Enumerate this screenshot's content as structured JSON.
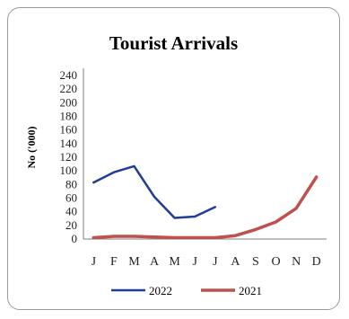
{
  "chart_data": {
    "type": "line",
    "title": "Tourist Arrivals",
    "xlabel": "",
    "ylabel": "No ('000)",
    "categories": [
      "J",
      "F",
      "M",
      "A",
      "M",
      "J",
      "J",
      "A",
      "S",
      "O",
      "N",
      "D"
    ],
    "yticks": [
      0,
      20,
      40,
      60,
      80,
      100,
      120,
      140,
      160,
      180,
      200,
      220,
      240
    ],
    "ylim": [
      0,
      240
    ],
    "grid": false,
    "legend_position": "bottom",
    "series": [
      {
        "name": "2022",
        "color": "#1f3d99",
        "values": [
          83,
          98,
          107,
          62,
          31,
          33,
          47,
          null,
          null,
          null,
          null,
          null
        ]
      },
      {
        "name": "2021",
        "color": "#c0504d",
        "values": [
          2,
          4,
          4,
          3,
          2,
          2,
          2,
          5,
          14,
          25,
          45,
          91
        ]
      }
    ]
  }
}
